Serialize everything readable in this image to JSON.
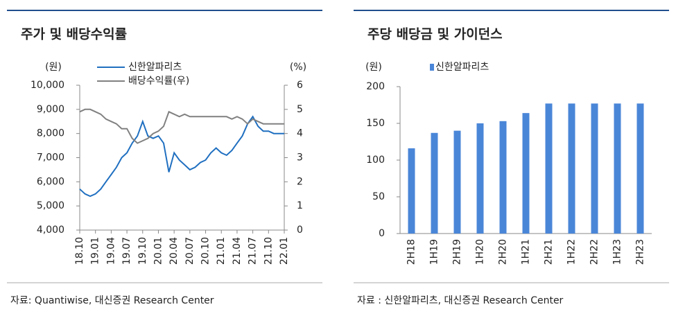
{
  "chart_data": [
    {
      "type": "line",
      "title": "주가 및 배당수익률",
      "y_unit": "(원)",
      "y2_unit": "(%)",
      "categories": [
        "18.10",
        null,
        null,
        "19.01",
        null,
        null,
        "19.04",
        null,
        null,
        "19.07",
        null,
        null,
        "19.10",
        null,
        null,
        "20.01",
        null,
        null,
        "20.04",
        null,
        null,
        "20.07",
        null,
        null,
        "20.10",
        null,
        null,
        "21.01",
        null,
        null,
        "21.04",
        null,
        null,
        "21.07",
        null,
        null,
        "21.10",
        null,
        null,
        "22.01"
      ],
      "series": [
        {
          "name": "신한알파리츠",
          "color": "#1f6fc0",
          "axis": "y",
          "values": [
            5700,
            5500,
            5400,
            5500,
            5700,
            6000,
            6300,
            6600,
            7000,
            7200,
            7600,
            7900,
            8500,
            7900,
            7800,
            7900,
            7600,
            6400,
            7200,
            6900,
            6700,
            6500,
            6600,
            6800,
            6900,
            7200,
            7400,
            7200,
            7100,
            7300,
            7600,
            7900,
            8400,
            8700,
            8300,
            8100,
            8100,
            8000,
            8000,
            8000
          ]
        },
        {
          "name": "배당수익률(우)",
          "color": "#808080",
          "axis": "y2",
          "values": [
            4.9,
            5.0,
            5.0,
            4.9,
            4.8,
            4.6,
            4.5,
            4.4,
            4.2,
            4.2,
            3.8,
            3.6,
            3.7,
            3.8,
            4.0,
            4.1,
            4.3,
            4.9,
            4.8,
            4.7,
            4.8,
            4.7,
            4.7,
            4.7,
            4.7,
            4.7,
            4.7,
            4.7,
            4.7,
            4.6,
            4.7,
            4.6,
            4.4,
            4.6,
            4.5,
            4.4,
            4.4,
            4.4,
            4.4,
            4.4
          ]
        }
      ],
      "ylim": [
        4000,
        10000
      ],
      "yticks": [
        {
          "value": 4000,
          "label": "4,000"
        },
        {
          "value": 5000,
          "label": "5,000"
        },
        {
          "value": 6000,
          "label": "6,000"
        },
        {
          "value": 7000,
          "label": "7,000"
        },
        {
          "value": 8000,
          "label": "8,000"
        },
        {
          "value": 9000,
          "label": "9,000"
        },
        {
          "value": 10000,
          "label": "10,000"
        }
      ],
      "y2lim": [
        0,
        6
      ],
      "y2ticks": [
        0,
        1,
        2,
        3,
        4,
        5,
        6
      ],
      "source": "자료: Quantiwise, 대신증권 Research Center"
    },
    {
      "type": "bar",
      "title": "주당 배당금 및 가이던스",
      "y_unit": "(원)",
      "categories": [
        "2H18",
        "1H19",
        "2H19",
        "1H20",
        "2H20",
        "1H21",
        "2H21",
        "1H22",
        "2H22",
        "1H23",
        "2H23"
      ],
      "series": [
        {
          "name": "신한알파리츠",
          "color": "#4a86d8",
          "values": [
            116,
            137,
            140,
            150,
            153,
            164,
            177,
            177,
            177,
            177,
            177
          ]
        }
      ],
      "ylim": [
        0,
        200
      ],
      "yticks": [
        0,
        50,
        100,
        150,
        200
      ],
      "source": "자료 : 신한알파리츠, 대신증권 Research Center"
    }
  ]
}
